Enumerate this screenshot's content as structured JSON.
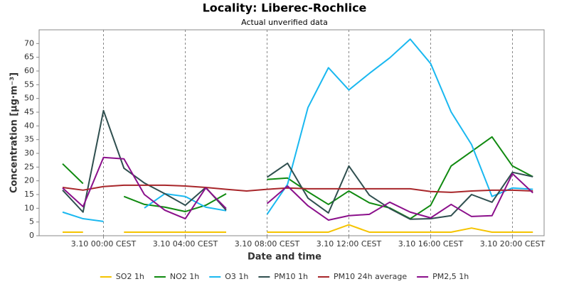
{
  "chart_data": {
    "type": "line",
    "title": "Locality: Liberec-Rochlice",
    "subtitle": "Actual unverified data",
    "x_label": "Date and time",
    "y_label": "Concentration [µg·m⁻³]",
    "categories": [
      null,
      null,
      "3.10 00:00 CEST",
      null,
      null,
      null,
      "3.10 04:00 CEST",
      null,
      null,
      null,
      "3.10 08:00 CEST",
      null,
      null,
      null,
      "3.10 12:00 CEST",
      null,
      null,
      null,
      "3.10 16:00 CEST",
      null,
      null,
      null,
      "3.10 20:00 CEST",
      null
    ],
    "ylim": [
      0,
      75
    ],
    "yticks": [
      0,
      5,
      10,
      15,
      20,
      25,
      30,
      35,
      40,
      45,
      50,
      55,
      60,
      65,
      70
    ],
    "grid": "x",
    "legend": "bottom",
    "series": [
      {
        "name": "SO2 1h",
        "color": "#f5c400",
        "values": [
          1.3,
          1.3,
          null,
          1.3,
          1.3,
          1.3,
          1.3,
          1.3,
          1.3,
          null,
          1.3,
          1.3,
          1.3,
          1.3,
          4,
          1.3,
          1.3,
          1.3,
          1.3,
          1.3,
          2.8,
          1.3,
          1.3,
          1.3
        ]
      },
      {
        "name": "NO2 1h",
        "color": "#108a10",
        "values": [
          26.2,
          19,
          null,
          14.3,
          11.4,
          10.4,
          8.8,
          11.1,
          15.3,
          null,
          20.5,
          21,
          16,
          11.4,
          16.3,
          12,
          10.1,
          6.2,
          11.1,
          25.4,
          30.7,
          36,
          25.4,
          21.5
        ]
      },
      {
        "name": "O3 1h",
        "color": "#1ab8f0",
        "values": [
          8.6,
          6.2,
          5.2,
          null,
          10.1,
          15.3,
          14.3,
          10.4,
          9.1,
          null,
          7.8,
          18.7,
          46.7,
          61.2,
          53.1,
          59.1,
          64.8,
          71.6,
          62.7,
          45.1,
          33.2,
          14.3,
          17.4,
          16.9
        ]
      },
      {
        "name": "PM10 1h",
        "color": "#2f4f4f",
        "values": [
          16.6,
          8.6,
          45.6,
          24.6,
          19.2,
          15.3,
          11.1,
          17.6,
          9.3,
          null,
          21.3,
          26.4,
          13.7,
          8.3,
          25.4,
          14.8,
          9.9,
          6,
          6.2,
          7.3,
          15,
          12.2,
          23.1,
          21.5
        ]
      },
      {
        "name": "PM10 24h average",
        "color": "#a8262a",
        "values": [
          17.6,
          16.6,
          17.9,
          18.4,
          18.4,
          18.4,
          18.1,
          17.6,
          16.9,
          16.3,
          16.9,
          17.4,
          17.1,
          17.1,
          17.1,
          17.1,
          17.1,
          17.1,
          16.1,
          15.8,
          16.3,
          16.6,
          16.6,
          16.3
        ]
      },
      {
        "name": "PM2,5 1h",
        "color": "#8b108b",
        "values": [
          17.4,
          10.6,
          28.5,
          28,
          15,
          9.3,
          6.2,
          17.4,
          9.9,
          null,
          11.7,
          18.1,
          10.9,
          5.7,
          7.3,
          7.8,
          12.2,
          8.6,
          6.5,
          11.4,
          7,
          7.3,
          22.6,
          15.6
        ]
      }
    ]
  }
}
